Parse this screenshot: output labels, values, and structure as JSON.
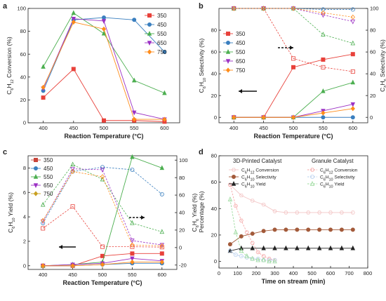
{
  "colors": {
    "s350": "#e8413a",
    "s450": "#3a7fbf",
    "s550": "#4caf50",
    "s650": "#9b30c4",
    "s750": "#ff8c1a",
    "hyd": "#c9a26b",
    "gran_conv": "#f5a7a7",
    "gran_sel": "#b8d0ee",
    "gran_yield": "#98d99a",
    "printed_conv": "#f3c6c6",
    "printed_sel": "#a35a3a",
    "printed_yield": "#222222"
  },
  "chart_data": [
    {
      "panel": "a",
      "type": "line",
      "xlabel": "Reaction Temperature (°C)",
      "ylabel": "C6H12 Conversion (%)",
      "x": [
        400,
        450,
        500,
        550,
        600
      ],
      "xlim": [
        375,
        625
      ],
      "ylim": [
        0,
        100
      ],
      "yticks": [
        0,
        20,
        40,
        60,
        80,
        100
      ],
      "series": [
        {
          "name": "350",
          "values": [
            22,
            47,
            2,
            2,
            1
          ]
        },
        {
          "name": "450",
          "values": [
            28,
            90,
            92,
            90,
            62
          ]
        },
        {
          "name": "550",
          "values": [
            49,
            96,
            78,
            37,
            26
          ]
        },
        {
          "name": "650",
          "values": [
            30,
            91,
            89,
            9,
            3
          ]
        },
        {
          "name": "750",
          "values": [
            31,
            88,
            82,
            3,
            3
          ]
        }
      ]
    },
    {
      "panel": "b",
      "type": "line",
      "xlabel": "Reaction Temperature (°C)",
      "ylabel": "C6H10 Selectivity (%)",
      "y2label": "C6H6 Selectivity (%)",
      "x": [
        400,
        450,
        500,
        550,
        600
      ],
      "xlim": [
        375,
        625
      ],
      "ylim": [
        -5,
        100
      ],
      "yticks": [
        0,
        20,
        40,
        60,
        80
      ],
      "y2ticks": [
        0,
        20,
        40,
        60,
        80,
        100
      ],
      "series_solid": [
        {
          "name": "350",
          "values": [
            0,
            0,
            46,
            53,
            58
          ]
        },
        {
          "name": "450",
          "values": [
            0,
            0,
            0,
            0,
            0
          ]
        },
        {
          "name": "550",
          "values": [
            0,
            0,
            0,
            24,
            32
          ]
        },
        {
          "name": "650",
          "values": [
            0,
            0,
            0,
            6,
            12
          ]
        },
        {
          "name": "750",
          "values": [
            0,
            0,
            0,
            4,
            8
          ]
        }
      ],
      "series_dashed": [
        {
          "name": "350",
          "values": [
            100,
            100,
            54,
            46,
            42
          ]
        },
        {
          "name": "450",
          "values": [
            100,
            100,
            100,
            99,
            99
          ]
        },
        {
          "name": "550",
          "values": [
            100,
            100,
            100,
            76,
            68
          ]
        },
        {
          "name": "650",
          "values": [
            100,
            100,
            100,
            94,
            88
          ]
        },
        {
          "name": "750",
          "values": [
            100,
            100,
            100,
            96,
            92
          ]
        }
      ]
    },
    {
      "panel": "c",
      "type": "line",
      "xlabel": "Reaction Temperature (°C)",
      "ylabel": "C6H10 Yield (%)",
      "y2label": "C6H6 Yield (%)",
      "x": [
        400,
        450,
        500,
        550,
        600
      ],
      "xlim": [
        375,
        625
      ],
      "ylim": [
        -0.3,
        9
      ],
      "yticks": [
        0,
        2,
        4,
        6,
        8
      ],
      "y2ticks": [
        -20,
        0,
        20,
        40,
        60,
        80,
        100
      ],
      "series_solid": [
        {
          "name": "350",
          "values": [
            0,
            0,
            0.8,
            1.0,
            1.0
          ]
        },
        {
          "name": "450",
          "values": [
            0,
            0,
            0.1,
            0.2,
            0.2
          ]
        },
        {
          "name": "550",
          "values": [
            0,
            0.1,
            0.3,
            8.9,
            8.0
          ]
        },
        {
          "name": "650",
          "values": [
            0,
            0.1,
            0.2,
            0.6,
            0.4
          ]
        },
        {
          "name": "750",
          "values": [
            0,
            0,
            0.1,
            0.3,
            0.3
          ]
        }
      ],
      "series_dashed": [
        {
          "name": "350",
          "values": [
            22,
            47,
            1,
            1,
            0.5
          ]
        },
        {
          "name": "450",
          "values": [
            28,
            87,
            92,
            89,
            61
          ]
        },
        {
          "name": "550",
          "values": [
            49,
            95,
            78,
            28,
            18
          ]
        },
        {
          "name": "650",
          "values": [
            30,
            90,
            89,
            8,
            3
          ]
        },
        {
          "name": "750",
          "values": [
            31,
            87,
            81,
            3,
            2
          ]
        }
      ]
    },
    {
      "panel": "d",
      "type": "line",
      "xlabel": "Time on stream (min)",
      "ylabel": "Percentage (%)",
      "xlim": [
        0,
        800
      ],
      "ylim": [
        -5,
        80
      ],
      "xticks": [
        0,
        100,
        200,
        300,
        400,
        500,
        600,
        700,
        800
      ],
      "yticks": [
        0,
        20,
        40,
        60,
        80
      ],
      "legend_group_1": "3D-Printed Catalyst",
      "legend_group_2": "Granule Catalyst",
      "x_printed": [
        60,
        120,
        180,
        240,
        300,
        360,
        420,
        480,
        540,
        600,
        660,
        720
      ],
      "x_granule": [
        60,
        90,
        120,
        150,
        180,
        210,
        240,
        270,
        300
      ],
      "series": [
        {
          "name": "C6H12 Conversion",
          "group": "printed",
          "values": [
            58,
            50,
            46,
            43,
            38,
            37,
            37,
            37,
            37,
            37,
            37,
            37
          ]
        },
        {
          "name": "C6H10 Selectivity",
          "group": "printed",
          "values": [
            13,
            19,
            21,
            23,
            24,
            24,
            24,
            24,
            24,
            24,
            24,
            24
          ]
        },
        {
          "name": "C6H10 Yield",
          "group": "printed",
          "values": [
            8,
            10,
            10,
            10,
            10,
            10,
            10,
            10,
            10,
            10,
            10,
            10
          ]
        },
        {
          "name": "C6H12 Conversion",
          "group": "granule",
          "values": [
            58,
            42,
            31,
            22,
            14,
            7,
            4,
            2,
            1
          ]
        },
        {
          "name": "C6H10 Selectivity",
          "group": "granule",
          "values": [
            8,
            5,
            4,
            3,
            2,
            2,
            1,
            1,
            1
          ]
        },
        {
          "name": "C6H10 Yield",
          "group": "granule",
          "values": [
            47,
            22,
            8,
            4,
            2,
            1,
            1,
            0,
            0
          ]
        }
      ]
    }
  ],
  "labels": {
    "panel_a": "a",
    "panel_b": "b",
    "panel_c": "c",
    "panel_d": "d",
    "legend_temps": [
      "350",
      "450",
      "550",
      "650",
      "750"
    ],
    "d_legend_printed": [
      "C6H12 Conversion",
      "C6H10 Selectivity",
      "C6H10 Yield"
    ],
    "d_legend_granule": [
      "C6H12 Conversion",
      "C6H10 Selectivity",
      "C6H10 Yield"
    ]
  }
}
